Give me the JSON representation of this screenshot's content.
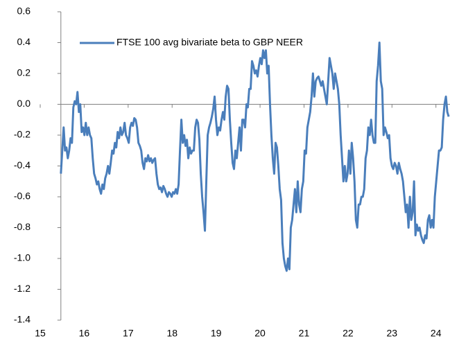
{
  "chart_data": {
    "type": "line",
    "x": [
      15.47,
      15.5015,
      15.533,
      15.5645,
      15.596,
      15.6275,
      15.659,
      15.6905,
      15.722,
      15.7535,
      15.785,
      15.8165,
      15.848,
      15.8795,
      15.911,
      15.9425,
      15.974,
      16.0055,
      16.037,
      16.0685,
      16.1,
      16.1315,
      16.163,
      16.1945,
      16.226,
      16.2575,
      16.289,
      16.3205,
      16.352,
      16.3835,
      16.415,
      16.4465,
      16.478,
      16.5095,
      16.541,
      16.5725,
      16.604,
      16.6355,
      16.667,
      16.6985,
      16.73,
      16.7615,
      16.793,
      16.8245,
      16.856,
      16.8875,
      16.919,
      16.9505,
      16.982,
      17.0135,
      17.045,
      17.0765,
      17.108,
      17.1395,
      17.171,
      17.2025,
      17.234,
      17.2655,
      17.297,
      17.3285,
      17.36,
      17.3915,
      17.423,
      17.4545,
      17.486,
      17.5175,
      17.549,
      17.5805,
      17.612,
      17.6435,
      17.675,
      17.7065,
      17.738,
      17.7695,
      17.801,
      17.8325,
      17.864,
      17.8955,
      17.927,
      17.9585,
      17.99,
      18.0215,
      18.053,
      18.0845,
      18.116,
      18.1475,
      18.179,
      18.2105,
      18.242,
      18.2735,
      18.305,
      18.3365,
      18.368,
      18.3995,
      18.431,
      18.4625,
      18.494,
      18.5255,
      18.557,
      18.5885,
      18.62,
      18.6515,
      18.683,
      18.7145,
      18.746,
      18.7775,
      18.809,
      18.8405,
      18.872,
      18.9035,
      18.935,
      18.9665,
      18.998,
      19.0295,
      19.061,
      19.0925,
      19.124,
      19.1555,
      19.187,
      19.2185,
      19.25,
      19.2815,
      19.313,
      19.3445,
      19.376,
      19.4075,
      19.439,
      19.4705,
      19.502,
      19.5335,
      19.565,
      19.5965,
      19.628,
      19.6595,
      19.691,
      19.7225,
      19.754,
      19.7855,
      19.817,
      19.8485,
      19.88,
      19.9115,
      19.943,
      19.9745,
      20.006,
      20.0375,
      20.069,
      20.1005,
      20.132,
      20.1635,
      20.195,
      20.2265,
      20.258,
      20.2895,
      20.321,
      20.3525,
      20.384,
      20.4155,
      20.447,
      20.4785,
      20.51,
      20.5415,
      20.573,
      20.6045,
      20.636,
      20.6675,
      20.699,
      20.7305,
      20.762,
      20.7935,
      20.825,
      20.8565,
      20.888,
      20.9195,
      20.951,
      20.9825,
      21.014,
      21.0455,
      21.077,
      21.1085,
      21.14,
      21.1715,
      21.203,
      21.2345,
      21.266,
      21.2975,
      21.329,
      21.3605,
      21.392,
      21.4235,
      21.455,
      21.4865,
      21.518,
      21.5495,
      21.581,
      21.6125,
      21.644,
      21.6755,
      21.707,
      21.7385,
      21.77,
      21.8015,
      21.833,
      21.8645,
      21.896,
      21.9275,
      21.959,
      21.9905,
      22.022,
      22.0535,
      22.085,
      22.1165,
      22.148,
      22.1795,
      22.211,
      22.2425,
      22.274,
      22.3055,
      22.337,
      22.3685,
      22.4,
      22.4315,
      22.463,
      22.4945,
      22.526,
      22.5575,
      22.589,
      22.6205,
      22.652,
      22.6835,
      22.715,
      22.7465,
      22.778,
      22.8095,
      22.841,
      22.8725,
      22.904,
      22.9355,
      22.967,
      22.9985,
      23.03,
      23.0615,
      23.093,
      23.1245,
      23.156,
      23.1875,
      23.219,
      23.2505,
      23.282,
      23.3135,
      23.345,
      23.3765,
      23.408,
      23.4395,
      23.471,
      23.5025,
      23.534,
      23.5655,
      23.597,
      23.6285,
      23.66,
      23.6915,
      23.723,
      23.7545,
      23.786,
      23.8175,
      23.849,
      23.8805,
      23.912,
      23.9435,
      23.975,
      24.0065,
      24.038,
      24.0695,
      24.101,
      24.1325,
      24.164,
      24.1955,
      24.227,
      24.2585,
      24.29
    ],
    "series": [
      {
        "name": "FTSE 100 avg bivariate beta to GBP NEER",
        "color": "#4a7ebb",
        "values": [
          -0.45,
          -0.3,
          -0.15,
          -0.3,
          -0.28,
          -0.35,
          -0.3,
          -0.22,
          -0.25,
          -0.02,
          0.02,
          0.0,
          0.08,
          -0.05,
          0.0,
          -0.18,
          -0.15,
          -0.2,
          -0.12,
          -0.2,
          -0.15,
          -0.2,
          -0.22,
          -0.35,
          -0.45,
          -0.48,
          -0.52,
          -0.5,
          -0.55,
          -0.58,
          -0.52,
          -0.55,
          -0.48,
          -0.45,
          -0.4,
          -0.45,
          -0.38,
          -0.3,
          -0.32,
          -0.25,
          -0.28,
          -0.18,
          -0.22,
          -0.15,
          -0.2,
          -0.18,
          -0.12,
          -0.2,
          -0.22,
          -0.25,
          -0.15,
          -0.12,
          -0.14,
          -0.09,
          -0.1,
          -0.15,
          -0.25,
          -0.27,
          -0.3,
          -0.38,
          -0.42,
          -0.35,
          -0.37,
          -0.33,
          -0.37,
          -0.35,
          -0.38,
          -0.36,
          -0.35,
          -0.45,
          -0.52,
          -0.55,
          -0.54,
          -0.57,
          -0.53,
          -0.55,
          -0.58,
          -0.6,
          -0.57,
          -0.58,
          -0.6,
          -0.57,
          -0.58,
          -0.55,
          -0.58,
          -0.52,
          -0.3,
          -0.1,
          -0.25,
          -0.2,
          -0.27,
          -0.23,
          -0.35,
          -0.28,
          -0.32,
          -0.3,
          -0.3,
          -0.15,
          -0.1,
          -0.12,
          -0.23,
          -0.45,
          -0.6,
          -0.7,
          -0.82,
          -0.5,
          -0.2,
          -0.15,
          -0.12,
          -0.08,
          -0.03,
          0.05,
          -0.1,
          -0.2,
          -0.15,
          -0.17,
          -0.1,
          -0.05,
          -0.1,
          0.05,
          0.12,
          0.1,
          -0.1,
          -0.25,
          -0.38,
          -0.42,
          -0.3,
          -0.35,
          -0.25,
          -0.15,
          -0.3,
          -0.1,
          -0.1,
          -0.15,
          0.0,
          -0.02,
          0.1,
          0.1,
          0.28,
          0.25,
          0.2,
          0.22,
          0.18,
          0.25,
          0.3,
          0.26,
          0.35,
          0.3,
          0.35,
          0.2,
          0.25,
          0.0,
          -0.2,
          -0.35,
          -0.45,
          -0.25,
          -0.28,
          -0.4,
          -0.55,
          -0.62,
          -0.9,
          -1.0,
          -1.05,
          -1.08,
          -1.0,
          -1.07,
          -0.8,
          -0.75,
          -0.65,
          -0.55,
          -0.7,
          -0.5,
          -0.65,
          -0.7,
          -0.55,
          -0.5,
          -0.3,
          -0.32,
          -0.15,
          -0.1,
          -0.05,
          0.05,
          0.2,
          0.05,
          0.15,
          0.17,
          0.18,
          0.15,
          0.12,
          0.15,
          0.1,
          0.05,
          0.0,
          0.15,
          0.3,
          0.25,
          0.2,
          0.1,
          0.2,
          0.15,
          0.1,
          0.0,
          -0.2,
          -0.35,
          -0.5,
          -0.4,
          -0.5,
          -0.45,
          -0.3,
          -0.45,
          -0.25,
          -0.35,
          -0.5,
          -0.75,
          -0.8,
          -0.65,
          -0.65,
          -0.6,
          -0.6,
          -0.55,
          -0.35,
          -0.3,
          -0.15,
          -0.2,
          -0.1,
          -0.2,
          -0.25,
          -0.25,
          0.15,
          0.25,
          0.4,
          0.15,
          0.1,
          -0.2,
          -0.15,
          -0.18,
          -0.22,
          -0.2,
          -0.35,
          -0.4,
          -0.42,
          -0.38,
          -0.4,
          -0.45,
          -0.38,
          -0.42,
          -0.45,
          -0.5,
          -0.6,
          -0.7,
          -0.65,
          -0.8,
          -0.6,
          -0.75,
          -0.7,
          -0.5,
          -0.85,
          -0.78,
          -0.82,
          -0.8,
          -0.85,
          -0.88,
          -0.9,
          -0.85,
          -0.87,
          -0.75,
          -0.72,
          -0.8,
          -0.75,
          -0.8,
          -0.6,
          -0.5,
          -0.4,
          -0.3,
          -0.3,
          -0.28,
          -0.1,
          0.0,
          0.05,
          -0.05,
          -0.08
        ]
      }
    ],
    "xlim": [
      15,
      24.32
    ],
    "xticks": [
      15,
      16,
      17,
      18,
      19,
      20,
      21,
      22,
      23,
      24
    ],
    "ylim": [
      -1.4,
      0.6
    ],
    "yticks": [
      {
        "value": 0.6,
        "label": "0.6"
      },
      {
        "value": 0.4,
        "label": "0.4"
      },
      {
        "value": 0.2,
        "label": "0.2"
      },
      {
        "value": 0,
        "label": "0.0"
      },
      {
        "value": -0.2,
        "label": "-0.2"
      },
      {
        "value": -0.4,
        "label": "-0.4"
      },
      {
        "value": -0.6,
        "label": "-0.6"
      },
      {
        "value": -0.8,
        "label": "-0.8"
      },
      {
        "value": -1.0,
        "label": "-1.0"
      },
      {
        "value": -1.2,
        "label": "-1.2"
      },
      {
        "value": -1.4,
        "label": "-1.4"
      }
    ],
    "legend": "top-left"
  }
}
